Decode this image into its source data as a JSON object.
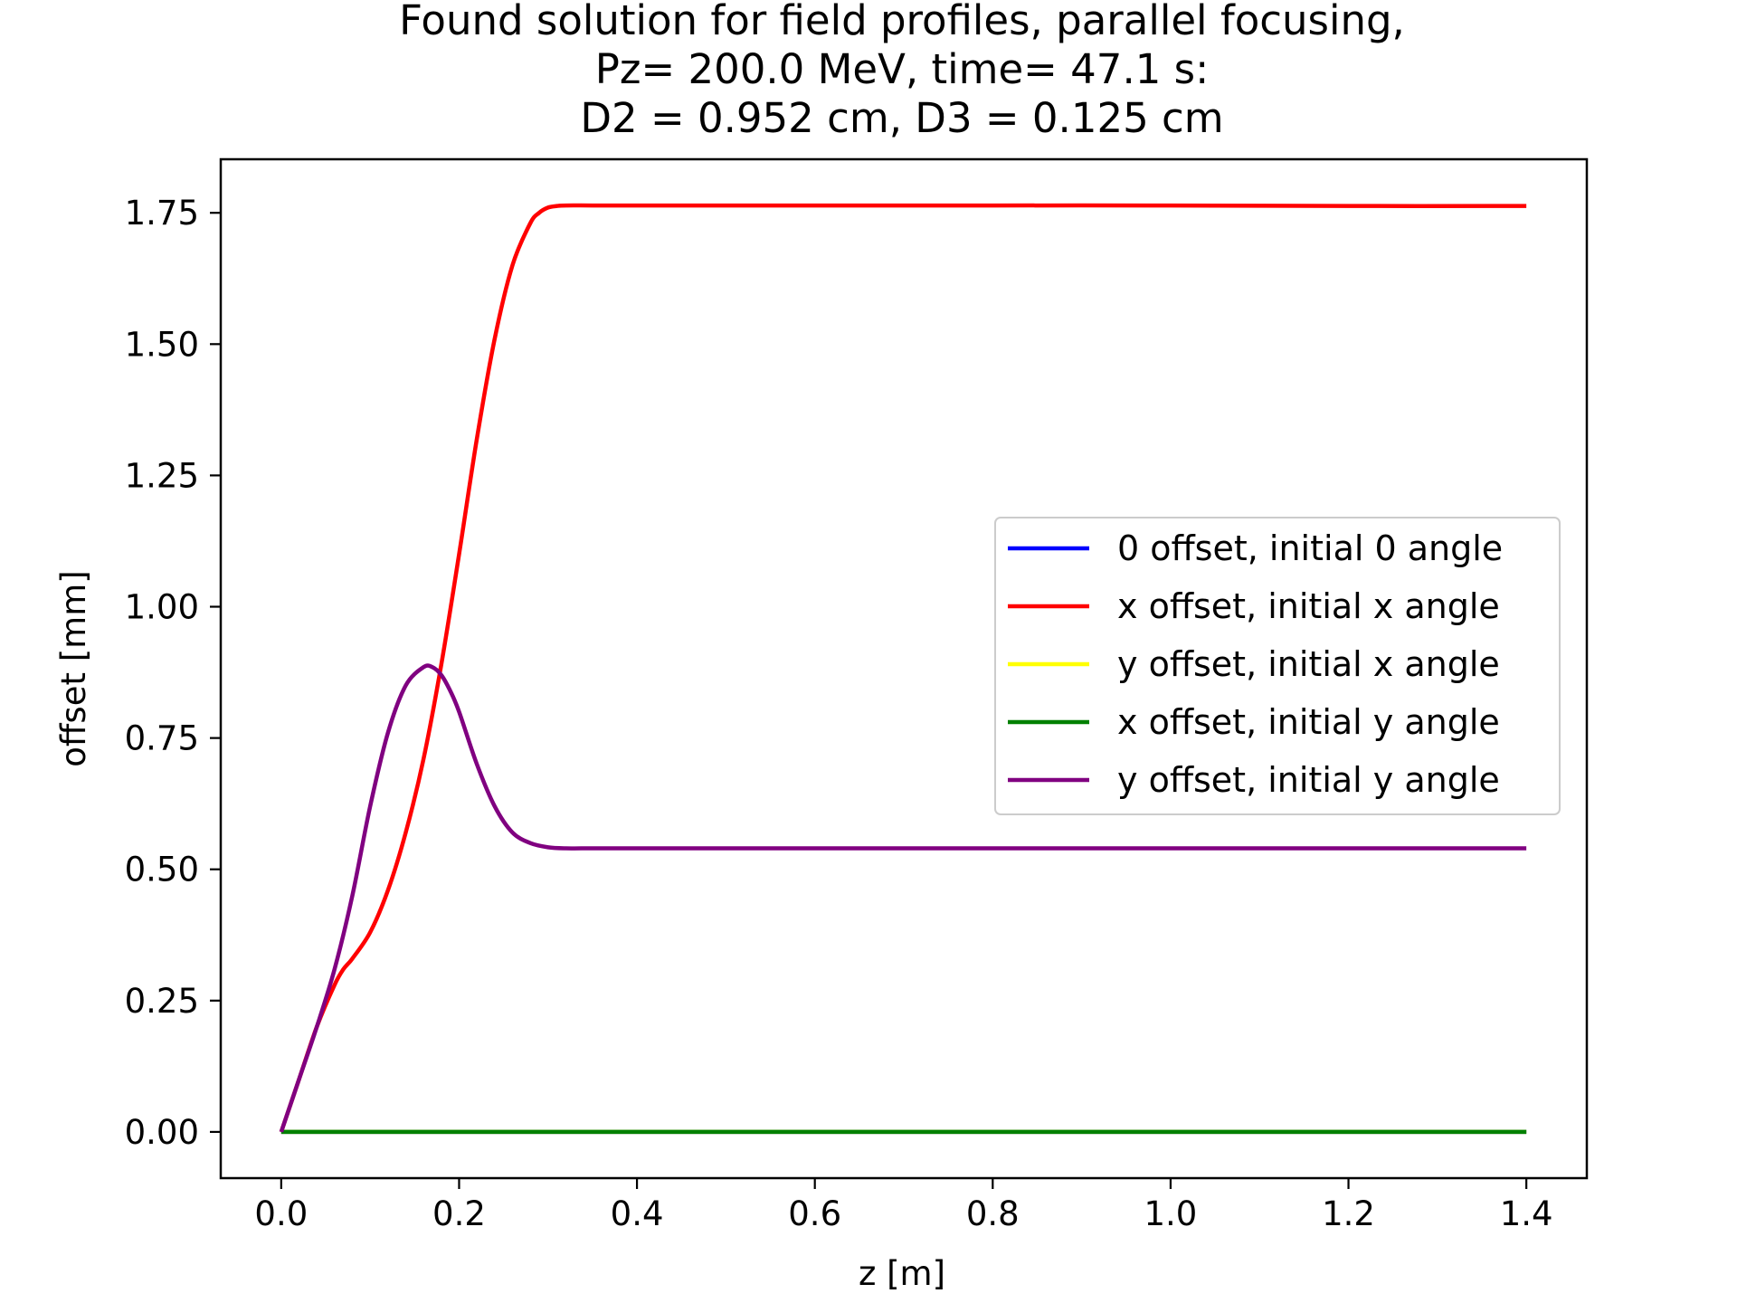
{
  "chart_data": {
    "type": "line",
    "title_lines": [
      "Found solution for field profiles, parallel focusing,",
      "Pz= 200.0 MeV, time= 47.1 s:",
      "D2 = 0.952 cm, D3 = 0.125 cm"
    ],
    "xlabel": "z [m]",
    "ylabel": "offset [mm]",
    "xlim": [
      -0.068,
      1.468
    ],
    "ylim": [
      -0.088,
      1.852
    ],
    "xticks": [
      0.0,
      0.2,
      0.4,
      0.6,
      0.8,
      1.0,
      1.2,
      1.4
    ],
    "xtick_labels": [
      "0.0",
      "0.2",
      "0.4",
      "0.6",
      "0.8",
      "1.0",
      "1.2",
      "1.4"
    ],
    "yticks": [
      0.0,
      0.25,
      0.5,
      0.75,
      1.0,
      1.25,
      1.5,
      1.75
    ],
    "ytick_labels": [
      "0.00",
      "0.25",
      "0.50",
      "0.75",
      "1.00",
      "1.25",
      "1.50",
      "1.75"
    ],
    "grid": false,
    "legend_position": "center-right",
    "series": [
      {
        "name": "0 offset, initial 0 angle",
        "color": "#0000ff",
        "x": [
          0.0,
          1.4
        ],
        "y": [
          0.0,
          0.0
        ]
      },
      {
        "name": "x offset, initial x angle",
        "color": "#ff0000",
        "x": [
          0.0,
          0.02,
          0.04,
          0.06,
          0.07,
          0.08,
          0.1,
          0.12,
          0.14,
          0.16,
          0.18,
          0.2,
          0.22,
          0.24,
          0.26,
          0.28,
          0.29,
          0.3,
          0.31,
          0.32,
          0.35,
          0.4,
          0.6,
          0.8,
          1.0,
          1.2,
          1.4
        ],
        "y": [
          0.0,
          0.1,
          0.2,
          0.28,
          0.31,
          0.33,
          0.38,
          0.46,
          0.57,
          0.71,
          0.89,
          1.1,
          1.32,
          1.51,
          1.65,
          1.73,
          1.75,
          1.76,
          1.763,
          1.764,
          1.764,
          1.764,
          1.764,
          1.764,
          1.764,
          1.763,
          1.763
        ]
      },
      {
        "name": "y offset, initial x angle",
        "color": "#ffff00",
        "x": [
          0.0,
          1.4
        ],
        "y": [
          0.0,
          0.0
        ]
      },
      {
        "name": "x offset, initial y angle",
        "color": "#008000",
        "x": [
          0.0,
          1.4
        ],
        "y": [
          0.0,
          0.0
        ]
      },
      {
        "name": "y offset, initial y angle",
        "color": "#800080",
        "x": [
          0.0,
          0.02,
          0.04,
          0.06,
          0.08,
          0.1,
          0.12,
          0.14,
          0.16,
          0.17,
          0.18,
          0.19,
          0.2,
          0.22,
          0.24,
          0.26,
          0.28,
          0.3,
          0.32,
          0.35,
          0.4,
          0.6,
          0.8,
          1.0,
          1.2,
          1.4
        ],
        "y": [
          0.0,
          0.1,
          0.2,
          0.31,
          0.45,
          0.62,
          0.76,
          0.85,
          0.885,
          0.885,
          0.87,
          0.84,
          0.8,
          0.7,
          0.62,
          0.57,
          0.55,
          0.542,
          0.54,
          0.54,
          0.54,
          0.54,
          0.54,
          0.54,
          0.54,
          0.54
        ]
      }
    ]
  }
}
